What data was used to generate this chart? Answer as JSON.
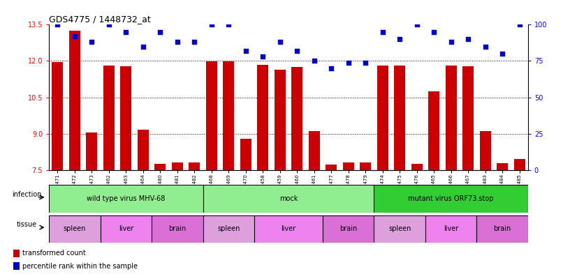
{
  "title": "GDS4775 / 1448732_at",
  "samples": [
    "GSM1243471",
    "GSM1243472",
    "GSM1243473",
    "GSM1243462",
    "GSM1243463",
    "GSM1243464",
    "GSM1243480",
    "GSM1243481",
    "GSM1243482",
    "GSM1243468",
    "GSM1243469",
    "GSM1243470",
    "GSM1243458",
    "GSM1243459",
    "GSM1243460",
    "GSM1243461",
    "GSM1243477",
    "GSM1243478",
    "GSM1243479",
    "GSM1243474",
    "GSM1243475",
    "GSM1243476",
    "GSM1243465",
    "GSM1243466",
    "GSM1243467",
    "GSM1243483",
    "GSM1243484",
    "GSM1243485"
  ],
  "bar_values": [
    11.95,
    13.25,
    9.05,
    11.8,
    11.78,
    9.15,
    7.75,
    7.8,
    7.82,
    11.98,
    11.97,
    8.78,
    11.85,
    11.65,
    11.75,
    9.1,
    7.72,
    7.8,
    7.82,
    11.82,
    11.8,
    7.75,
    10.75,
    11.8,
    11.78,
    9.1,
    7.78,
    7.95
  ],
  "percentile_values": [
    100,
    92,
    88,
    100,
    95,
    85,
    95,
    88,
    88,
    100,
    100,
    82,
    78,
    88,
    82,
    75,
    70,
    74,
    74,
    95,
    90,
    100,
    95,
    88,
    90,
    85,
    80,
    100
  ],
  "infection_groups": [
    {
      "label": "wild type virus MHV-68",
      "start": 0,
      "end": 8,
      "color": "#90ee90"
    },
    {
      "label": "mock",
      "start": 9,
      "end": 18,
      "color": "#90ee90"
    },
    {
      "label": "mutant virus ORF73.stop",
      "start": 19,
      "end": 27,
      "color": "#32cd32"
    }
  ],
  "tissue_groups": [
    {
      "label": "spleen",
      "start": 0,
      "end": 2,
      "color": "#dda0dd"
    },
    {
      "label": "liver",
      "start": 3,
      "end": 5,
      "color": "#ee82ee"
    },
    {
      "label": "brain",
      "start": 6,
      "end": 8,
      "color": "#da70d6"
    },
    {
      "label": "spleen",
      "start": 9,
      "end": 11,
      "color": "#dda0dd"
    },
    {
      "label": "liver",
      "start": 12,
      "end": 15,
      "color": "#ee82ee"
    },
    {
      "label": "brain",
      "start": 16,
      "end": 18,
      "color": "#da70d6"
    },
    {
      "label": "spleen",
      "start": 19,
      "end": 21,
      "color": "#dda0dd"
    },
    {
      "label": "liver",
      "start": 22,
      "end": 24,
      "color": "#ee82ee"
    },
    {
      "label": "brain",
      "start": 25,
      "end": 27,
      "color": "#da70d6"
    }
  ],
  "ymin": 7.5,
  "ymax": 13.5,
  "yticks": [
    7.5,
    9.0,
    10.5,
    12.0,
    13.5
  ],
  "y2ticks": [
    0,
    25,
    50,
    75,
    100
  ],
  "bar_color": "#cc0000",
  "dot_color": "#0000cc"
}
